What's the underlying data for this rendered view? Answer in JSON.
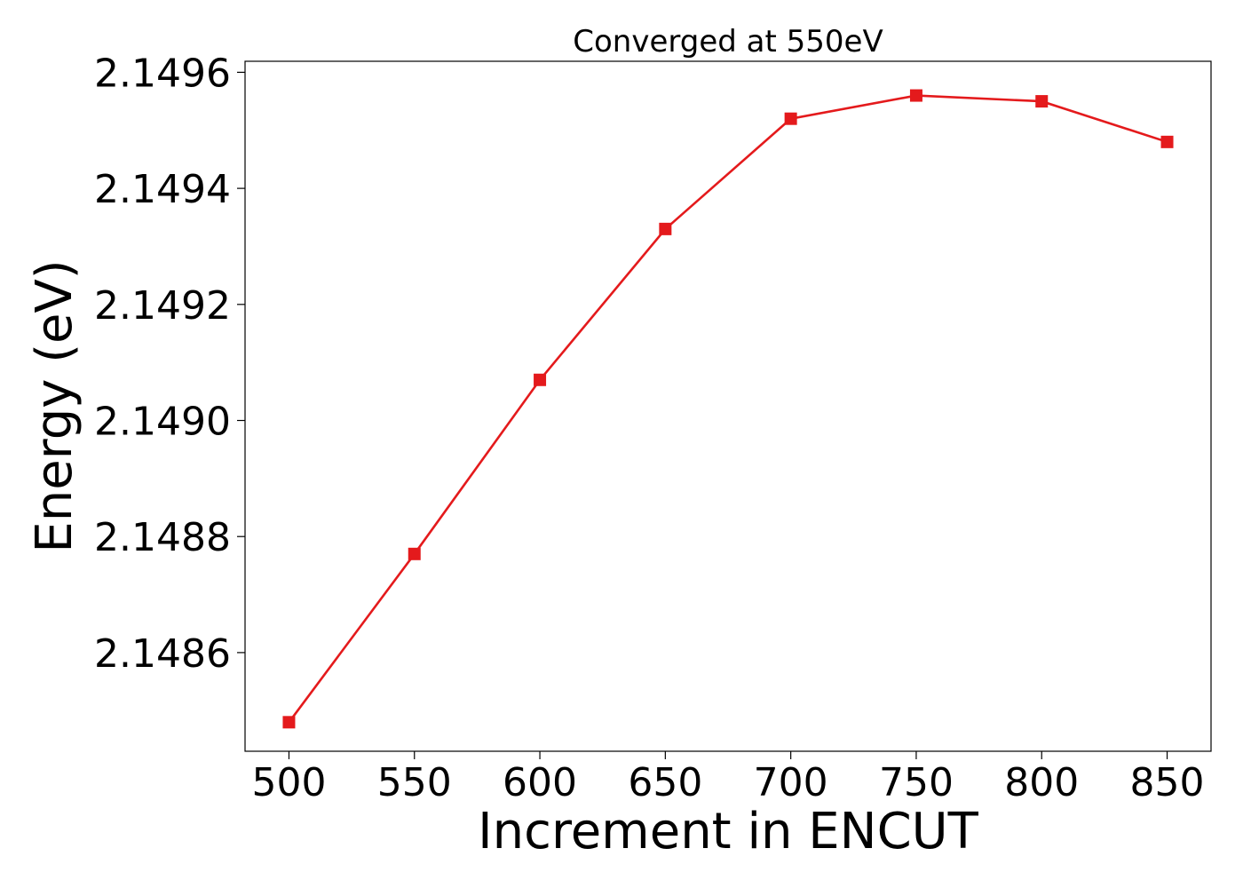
{
  "chart_data": {
    "type": "line",
    "title": "Converged at 550eV",
    "xlabel": "Increment in ENCUT",
    "ylabel": "Energy (eV)",
    "x": [
      500,
      550,
      600,
      650,
      700,
      750,
      800,
      850
    ],
    "series": [
      {
        "values": [
          2.14848,
          2.14877,
          2.14907,
          2.14933,
          2.14952,
          2.14956,
          2.14955,
          2.14948
        ],
        "color": "#e41a1c",
        "marker": "square"
      }
    ],
    "xticks": [
      500,
      550,
      600,
      650,
      700,
      750,
      800,
      850
    ],
    "xtick_labels": [
      "500",
      "550",
      "600",
      "650",
      "700",
      "750",
      "800",
      "850"
    ],
    "yticks": [
      2.1486,
      2.1488,
      2.149,
      2.1492,
      2.1494,
      2.1496
    ],
    "ytick_labels": [
      "2.1486",
      "2.1488",
      "2.1490",
      "2.1492",
      "2.1494",
      "2.1496"
    ],
    "xlim": [
      482.5,
      867.5
    ],
    "ylim": [
      2.14843,
      2.149619
    ],
    "grid": false,
    "legend": "none"
  }
}
